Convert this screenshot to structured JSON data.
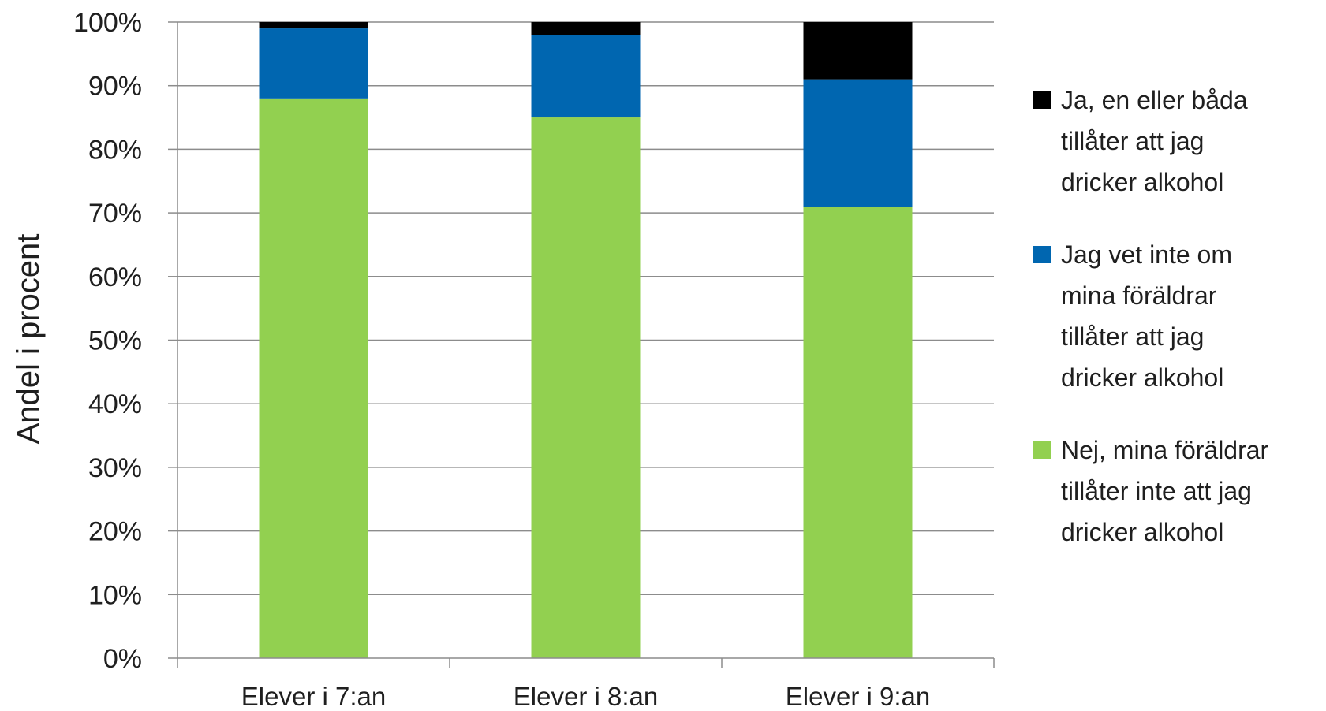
{
  "chart_data": {
    "type": "bar",
    "stacked": true,
    "categories": [
      "Elever i 7:an",
      "Elever i 8:an",
      "Elever i 9:an"
    ],
    "series": [
      {
        "name": "Nej, mina föräldrar tillåter inte att jag dricker alkohol",
        "name_lines": [
          "Nej, mina föräldrar",
          "tillåter inte att jag",
          "dricker alkohol"
        ],
        "color": "#92d050",
        "values": [
          88,
          85,
          71
        ]
      },
      {
        "name": "Jag vet inte om mina föräldrar tillåter att jag dricker alkohol",
        "name_lines": [
          "Jag vet inte om",
          "mina föräldrar",
          "tillåter att jag",
          "dricker alkohol"
        ],
        "color": "#0066b0",
        "values": [
          11,
          13,
          20
        ]
      },
      {
        "name": "Ja, en eller båda tillåter att jag dricker alkohol",
        "name_lines": [
          "Ja, en eller båda",
          "tillåter att jag",
          "dricker alkohol"
        ],
        "color": "#000000",
        "values": [
          1,
          2,
          9
        ]
      }
    ],
    "ylabel": "Andel i procent",
    "xlabel": "",
    "ylim": [
      0,
      100
    ],
    "yticks": [
      "0%",
      "10%",
      "20%",
      "30%",
      "40%",
      "50%",
      "60%",
      "70%",
      "80%",
      "90%",
      "100%"
    ],
    "grid": true,
    "legend_position": "right",
    "legend_order": [
      2,
      1,
      0
    ]
  }
}
